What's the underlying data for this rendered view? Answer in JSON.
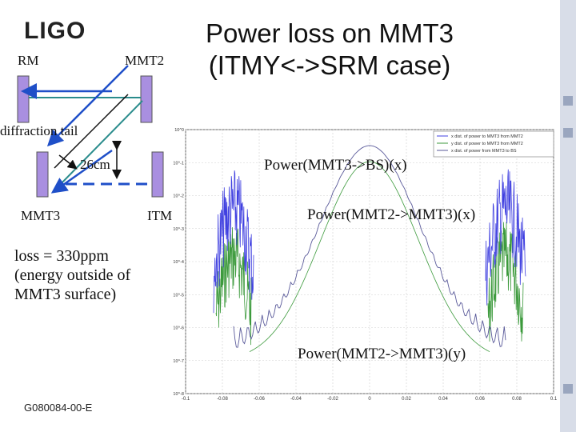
{
  "logo": "LIGO",
  "title": "Power loss on MMT3 (ITMY<->SRM case)",
  "diagram": {
    "labels": {
      "rm": "RM",
      "mmt2": "MMT2",
      "diffraction": "diffraction tail",
      "distance": "26cm",
      "mmt3": "MMT3",
      "itm": "ITM"
    },
    "colors": {
      "mirror": "#a98fe0",
      "beam_teal": "#2a8c8c",
      "beam_blue": "#1f4fc8"
    }
  },
  "loss_text": "loss = 330ppm\n(energy outside of\nMMT3 surface)",
  "doc_id": "G080084-00-E",
  "plot": {
    "annotations": {
      "a1": "Power(MMT3->BS)(x)",
      "a2": "Power(MMT2->MMT3)(x)",
      "a3": "Power(MMT2->MMT3)(y)"
    },
    "legend": [
      "x dist. of power to MMT3 from MMT2",
      "y dist. of power to MMT3 from MMT2",
      "x dist. of power from MMT3 to BS"
    ],
    "x_ticks": [
      "-0.1",
      "-0.08",
      "-0.06",
      "-0.04",
      "-0.02",
      "0",
      "0.02",
      "0.04",
      "0.06",
      "0.08",
      "0.1"
    ],
    "y_ticks": [
      "10^0",
      "10^-1",
      "10^-2",
      "10^-3",
      "10^-4",
      "10^-5",
      "10^-6",
      "10^-7",
      "10^-8"
    ],
    "colors": {
      "blue": "#4040e0",
      "green": "#3c9a3c",
      "gray": "#5a5a9a",
      "grid": "#cfcfcf"
    }
  }
}
